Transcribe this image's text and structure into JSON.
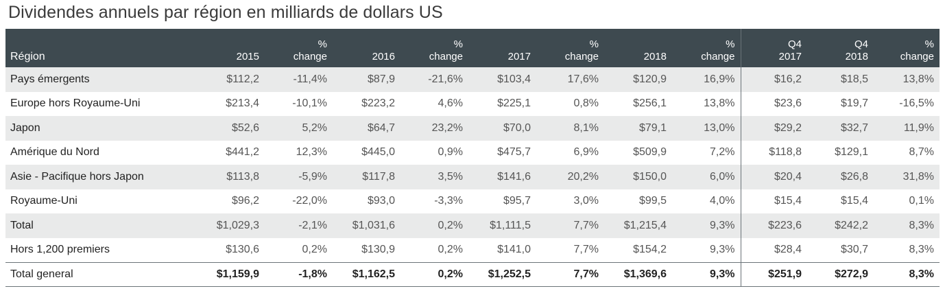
{
  "title": "Dividendes annuels par région en milliards de dollars US",
  "headers": [
    {
      "l1": "",
      "l2": "Région"
    },
    {
      "l1": "",
      "l2": "2015"
    },
    {
      "l1": "%",
      "l2": "change"
    },
    {
      "l1": "",
      "l2": "2016"
    },
    {
      "l1": "%",
      "l2": "change"
    },
    {
      "l1": "",
      "l2": "2017"
    },
    {
      "l1": "%",
      "l2": "change"
    },
    {
      "l1": "",
      "l2": "2018"
    },
    {
      "l1": "%",
      "l2": "change"
    },
    {
      "l1": "Q4",
      "l2": "2017"
    },
    {
      "l1": "Q4",
      "l2": "2018"
    },
    {
      "l1": "%",
      "l2": "change"
    }
  ],
  "rows": [
    [
      "Pays émergents",
      "$112,2",
      "-11,4%",
      "$87,9",
      "-21,6%",
      "$103,4",
      "17,6%",
      "$120,9",
      "16,9%",
      "$16,2",
      "$18,5",
      "13,8%"
    ],
    [
      "Europe hors Royaume-Uni",
      "$213,4",
      "-10,1%",
      "$223,2",
      "4,6%",
      "$225,1",
      "0,8%",
      "$256,1",
      "13,8%",
      "$23,6",
      "$19,7",
      "-16,5%"
    ],
    [
      "Japon",
      "$52,6",
      "5,2%",
      "$64,7",
      "23,2%",
      "$70,0",
      "8,1%",
      "$79,1",
      "13,0%",
      "$29,2",
      "$32,7",
      "11,9%"
    ],
    [
      "Amérique du Nord",
      "$441,2",
      "12,3%",
      "$445,0",
      "0,9%",
      "$475,7",
      "6,9%",
      "$509,9",
      "7,2%",
      "$118,8",
      "$129,1",
      "8,7%"
    ],
    [
      "Asie - Pacifique hors Japon",
      "$113,8",
      "-5,9%",
      "$117,8",
      "3,5%",
      "$141,6",
      "20,2%",
      "$150,0",
      "6,0%",
      "$20,4",
      "$26,8",
      "31,8%"
    ],
    [
      "Royaume-Uni",
      "$96,2",
      "-22,0%",
      "$93,0",
      "-3,3%",
      "$95,7",
      "3,0%",
      "$99,5",
      "4,0%",
      "$15,4",
      "$15,4",
      "0,1%"
    ],
    [
      "Total",
      "$1,029,3",
      "-2,1%",
      "$1,031,6",
      "0,2%",
      "$1,111,5",
      "7,7%",
      "$1,215,4",
      "9,3%",
      "$223,6",
      "$242,2",
      "8,3%"
    ],
    [
      "Hors 1,200 premiers",
      "$130,6",
      "0,2%",
      "$130,9",
      "0,2%",
      "$141,0",
      "7,7%",
      "$154,2",
      "9,3%",
      "$28,4",
      "$30,7",
      "8,3%"
    ],
    [
      "Total general",
      "$1,159,9",
      "-1,8%",
      "$1,162,5",
      "0,2%",
      "$1,252,5",
      "7,7%",
      "$1,369,6",
      "9,3%",
      "$251,9",
      "$272,9",
      "8,3%"
    ]
  ]
}
